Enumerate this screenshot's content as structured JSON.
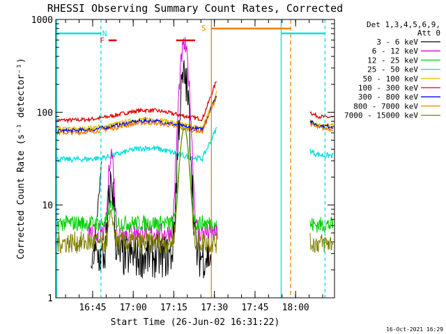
{
  "chart_data": {
    "type": "line",
    "title": "RHESSI Observing Summary Count Rates, Corrected",
    "xlabel": "Start Time (26-Jun-02 16:31:22)",
    "ylabel": "Corrected Count Rate (s⁻¹ detector⁻¹)",
    "yscale": "log",
    "ylim": [
      1,
      1000
    ],
    "xlim_minutes": [
      0,
      103
    ],
    "xticks": [
      {
        "label": "16:45",
        "minutes": 13.63
      },
      {
        "label": "17:00",
        "minutes": 28.63
      },
      {
        "label": "17:15",
        "minutes": 43.63
      },
      {
        "label": "17:30",
        "minutes": 58.63
      },
      {
        "label": "17:45",
        "minutes": 73.63
      },
      {
        "label": "18:00",
        "minutes": 88.63
      }
    ],
    "yticks": [
      {
        "label": "1",
        "value": 1
      },
      {
        "label": "10",
        "value": 10
      },
      {
        "label": "100",
        "value": 100
      },
      {
        "label": "1000",
        "value": 1000
      }
    ],
    "legend_header": [
      "Det 1,3,4,5,6,9,",
      "Att 0"
    ],
    "series": [
      {
        "name": "3 - 6 keV",
        "color": "#000000"
      },
      {
        "name": "6 - 12 keV",
        "color": "#e000e0"
      },
      {
        "name": "12 - 25 keV",
        "color": "#00d000"
      },
      {
        "name": "25 - 50 keV",
        "color": "#00e0e0"
      },
      {
        "name": "50 - 100 keV",
        "color": "#e0c000"
      },
      {
        "name": "100 - 300 keV",
        "color": "#e00000"
      },
      {
        "name": "300 - 800 keV",
        "color": "#0000e0"
      },
      {
        "name": "800 - 7000 keV",
        "color": "#f08000"
      },
      {
        "name": "7000 - 15000 keV",
        "color": "#808000"
      }
    ],
    "annotations": [
      {
        "label": "N",
        "color": "#00e0e0"
      },
      {
        "label": "F",
        "color": "#e00000"
      },
      {
        "label": "S",
        "color": "#f08000"
      }
    ],
    "timestamp": "16-Oct-2021 16:29"
  }
}
